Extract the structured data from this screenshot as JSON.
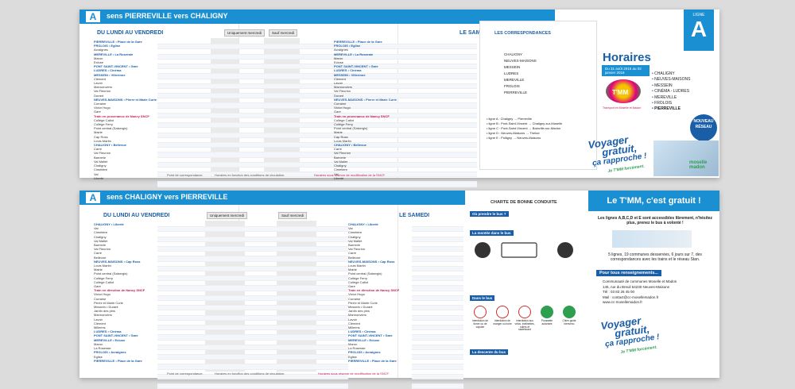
{
  "top": {
    "letter": "A",
    "route": "sens PIERREVILLE vers CHALIGNY",
    "weekdays": "DU LUNDI AU VENDREDI",
    "saturday": "LE SAMEDI",
    "tag_wed": "Uniquement mercredi",
    "tag_school": "Sauf mercredi",
    "stops": [
      "PIERREVILLE • Place de la Gare",
      "FROLOIS • Eglise",
      "Acraignes",
      "MEREVILLE • La Roseraie",
      "Maron",
      "Ecluse",
      "PONT SAINT-VINCENT • Gare",
      "LUDRES • Cinéma",
      "MESSEIN • Villerinne",
      "Clément",
      "Lavoir",
      "Mannonviers",
      "Val Fleurion",
      "Durant",
      "NEUVES-MAISONS • Pierre et Marie Curie",
      "Curraine",
      "Victor Hugo",
      "Gare",
      "Train en provenance de Nancy SNCF",
      "Collège Callot",
      "Collège Ferry",
      "Point central (Salsergis)",
      "Mairie",
      "Cap Ross",
      "Louis Martin",
      "CHALIGNY • Bellevue",
      "Carre",
      "Val Fleurion",
      "Barnerie",
      "Val Mallet",
      "Chaligny",
      "Cimetière",
      "Val",
      "Liberté"
    ],
    "note_corr": "Point de correspondance.",
    "note_horaires": "Horaires en fonction des conditions de circulation.",
    "note_sncf": "Horaires sous réserve de modification de la SNCF."
  },
  "correspondances": {
    "title": "LES CORRESPONDANCES",
    "places": [
      "CHALIGNY",
      "NEUVES-MAISONS",
      "MESSEIN",
      "LUDRES",
      "MEREVILLE",
      "FROLOIS",
      "PIERREVILLE"
    ],
    "lines": [
      "• ligne A : Chaligny → Pierreville",
      "• ligne B : Pont-Saint-Vincent → Chaligny-sur-Moselle",
      "• ligne C : Pont-Saint-Vincent → Bainville-sur-Madon",
      "• ligne D : Neuves-Maisons → Thélod",
      "• ligne E : Pulligny → Neuves-Maisons"
    ]
  },
  "cover": {
    "ligne": "LIGNE",
    "letter": "A",
    "title": "Horaires",
    "dates": "Du 31 août 2015 au 02 janvier 2016",
    "communes": [
      "CHALIGNY",
      "NEUVES-MAISONS",
      "MESSEIN",
      "CINÉMA - LUDRES",
      "MEREVILLE",
      "FROLOIS",
      "PIERREVILLE"
    ],
    "badge": "NOUVEAU RÉSEAU",
    "slogan1": "Voyager",
    "slogan2": "gratuit,",
    "slogan3": "ça rapproche !",
    "signature": "Je T'MM forcément.",
    "brand": "moselle madon",
    "tmm": "T'MM",
    "tmm_sub": "Transport en Moselle et Madon"
  },
  "bottom": {
    "letter": "A",
    "route": "sens CHALIGNY vers PIERREVILLE",
    "weekdays": "DU LUNDI AU VENDREDI",
    "saturday": "LE SAMEDI",
    "tag_wed": "Uniquement mercredi",
    "tag_school": "Sauf mercredi",
    "stops": [
      "CHALIGNY • Liberté",
      "Val",
      "Cimetière",
      "Chaligny",
      "Val Mallet",
      "Barnerie",
      "Val Fleurion",
      "Carre",
      "Bellevue",
      "NEUVES-MAISONS • Cap Ross",
      "Louis Martin",
      "Mairie",
      "Point central (Salsergis)",
      "Collège Ferry",
      "Collège Callot",
      "Gare",
      "Train en direction de Nancy SNCF",
      "Victor Hugo",
      "Curraine",
      "Pierre et Marie Curie",
      "Messein • Durant",
      "Jardin des pins",
      "Mannonviers",
      "Lavoir",
      "Clément",
      "Millerins",
      "LUDRES • Cinéma",
      "PONT SAINT-VINCENT • Gare",
      "MEREVILLE • Ecluse",
      "Maron",
      "La Roseraie",
      "FROLOIS • Acraignes",
      "Eglise",
      "PIERREVILLE • Place de la Gare"
    ],
    "note_corr": "Point de correspondance.",
    "note_horaires": "Horaires en fonction des conditions de circulation.",
    "note_sncf": "Horaires sous réserve de modification de la SNCF."
  },
  "charte": {
    "title": "CHARTE DE BONNE CONDUITE",
    "q1": "Où prendre le bus ?",
    "q2": "La montée dans le bus",
    "q3": "Dans le bus",
    "q4": "La descente du bus",
    "rules": [
      "Interdiction de fumer ou de vapoter",
      "Interdiction de manger ou boire",
      "Interdiction aux vélos, trottinettes, rollers et skateboard",
      "Poussette autorisée",
      "Chien guide bienvenu"
    ]
  },
  "gratuit": {
    "banner": "Le T'MM, c'est gratuit !",
    "intro": "Les lignes A,B,C,D et E sont accessibles librement, n'hésitez plus, prenez le bus à volonté !",
    "stats": "5 lignes, 19 communes desservies, 6 jours sur 7, des correspondances avec les trains et le réseau Stan.",
    "more": "Pour tous renseignements...",
    "contact": [
      "Communauté de communes Moselle et Madon",
      "145, rue du Breuil 54230 Neuves-Maisons",
      "Tél : 03 83 26 45 00",
      "Mail : contact@cc-mosellemadon.fr",
      "www.cc-mosellemadon.fr"
    ],
    "slogan1": "Voyager",
    "slogan2": "gratuit,",
    "slogan3": "ça rapproche !",
    "signature": "Je T'MM forcément."
  },
  "colors": {
    "blue": "#1a8fd1",
    "navy": "#1a5ea8",
    "pink": "#c2185b",
    "green": "#2e9e4f"
  }
}
